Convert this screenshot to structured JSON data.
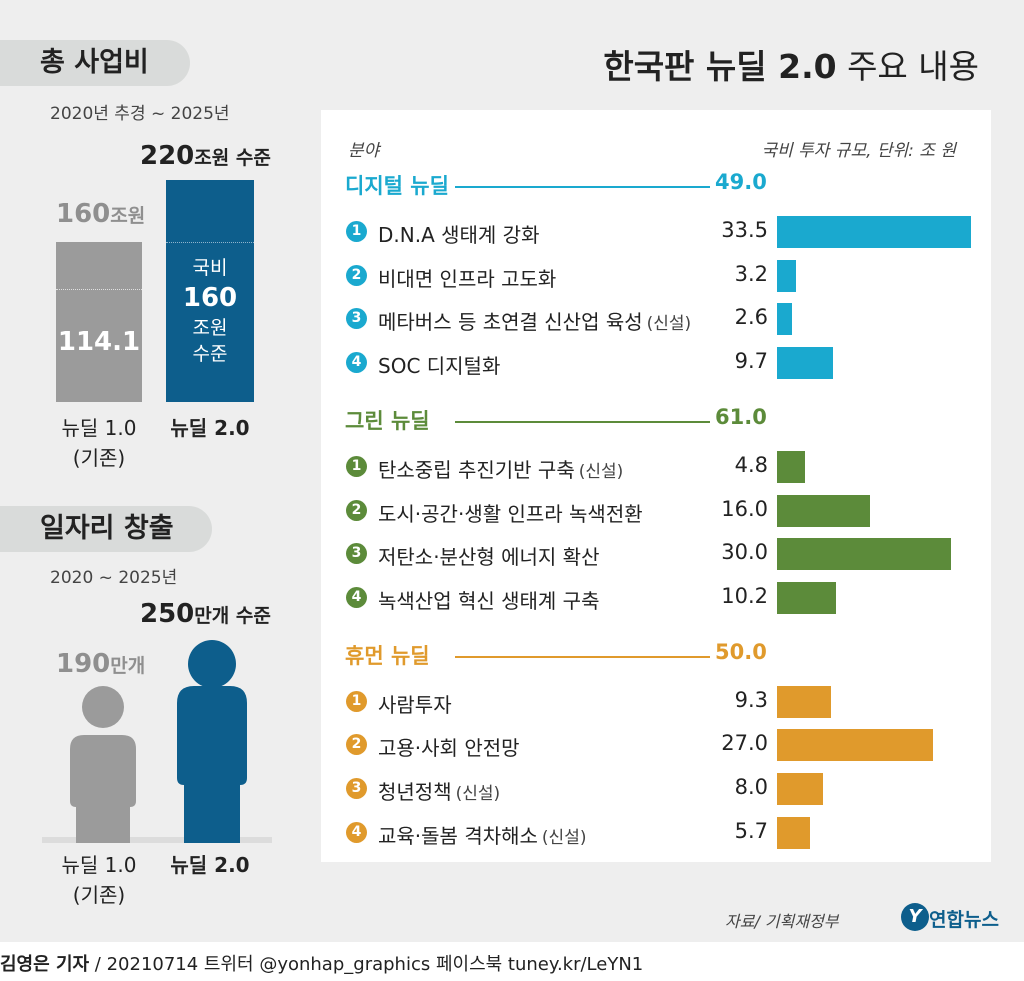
{
  "title": {
    "bold": "한국판 뉴딜 2.0",
    "rest": " 주요 내용"
  },
  "budget": {
    "heading": "총 사업비",
    "period": "2020년 추경 ~ 2025년",
    "old": {
      "total_num": "160",
      "total_unit": "조원",
      "inner": "114.1",
      "label_line1": "뉴딜 1.0",
      "label_line2": "(기존)"
    },
    "new": {
      "total_num": "220",
      "total_unit": "조원 수준",
      "inner_line1": "국비",
      "inner_line2": "160",
      "inner_line3": "조원",
      "inner_line4": "수준",
      "label": "뉴딜 2.0"
    }
  },
  "jobs": {
    "heading": "일자리 창출",
    "period": "2020 ~ 2025년",
    "old": {
      "num": "190",
      "unit": "만개",
      "label_line1": "뉴딜 1.0",
      "label_line2": "(기존)"
    },
    "new": {
      "num": "250",
      "unit": "만개 수준",
      "label": "뉴딜 2.0"
    }
  },
  "table_header": {
    "left": "분야",
    "right": "국비 투자 규모, 단위: 조 원"
  },
  "source": "자료/ 기획재정부",
  "logo": {
    "mark": "Y",
    "text": "연합뉴스"
  },
  "footer": {
    "author": "김영은 기자",
    "rest": " / 20210714  트위터 @yonhap_graphics  페이스북 tuney.kr/LeYN1"
  },
  "colors": {
    "digital": "#1aa9cf",
    "green": "#5c8b3a",
    "human": "#e09a2c",
    "navy": "#0d5e8c",
    "gray": "#9b9b9b"
  },
  "chart_data": [
    {
      "type": "bar",
      "title": "총 사업비",
      "categories": [
        "뉴딜 1.0 (기존)",
        "뉴딜 2.0"
      ],
      "series": [
        {
          "name": "국비",
          "values": [
            114.1,
            160
          ]
        },
        {
          "name": "총 사업비",
          "values": [
            160,
            220
          ]
        }
      ],
      "ylabel": "조원"
    },
    {
      "type": "bar",
      "title": "일자리 창출",
      "categories": [
        "뉴딜 1.0 (기존)",
        "뉴딜 2.0"
      ],
      "values": [
        190,
        250
      ],
      "ylabel": "만개"
    },
    {
      "type": "bar",
      "title": "한국판 뉴딜 2.0 주요 내용",
      "xlabel": "국비 투자 규모, 단위: 조 원",
      "xlim": [
        0,
        33.5
      ],
      "groups": [
        {
          "name": "디지털 뉴딜",
          "total": "49.0",
          "color": "#1aa9cf",
          "items": [
            {
              "no": "1",
              "label": "D.N.A 생태계 강화",
              "note": "",
              "value": 33.5,
              "value_text": "33.5"
            },
            {
              "no": "2",
              "label": "비대면 인프라 고도화",
              "note": "",
              "value": 3.2,
              "value_text": "3.2"
            },
            {
              "no": "3",
              "label": "메타버스 등 초연결 신산업 육성",
              "note": "(신설)",
              "value": 2.6,
              "value_text": "2.6"
            },
            {
              "no": "4",
              "label": "SOC 디지털화",
              "note": "",
              "value": 9.7,
              "value_text": "9.7"
            }
          ]
        },
        {
          "name": "그린 뉴딜",
          "total": "61.0",
          "color": "#5c8b3a",
          "items": [
            {
              "no": "1",
              "label": "탄소중립 추진기반 구축",
              "note": "(신설)",
              "value": 4.8,
              "value_text": "4.8"
            },
            {
              "no": "2",
              "label": "도시·공간·생활 인프라 녹색전환",
              "note": "",
              "value": 16.0,
              "value_text": "16.0"
            },
            {
              "no": "3",
              "label": "저탄소·분산형 에너지 확산",
              "note": "",
              "value": 30.0,
              "value_text": "30.0"
            },
            {
              "no": "4",
              "label": "녹색산업 혁신 생태계 구축",
              "note": "",
              "value": 10.2,
              "value_text": "10.2"
            }
          ]
        },
        {
          "name": "휴먼 뉴딜",
          "total": "50.0",
          "color": "#e09a2c",
          "items": [
            {
              "no": "1",
              "label": "사람투자",
              "note": "",
              "value": 9.3,
              "value_text": "9.3"
            },
            {
              "no": "2",
              "label": "고용·사회 안전망",
              "note": "",
              "value": 27.0,
              "value_text": "27.0"
            },
            {
              "no": "3",
              "label": "청년정책",
              "note": "(신설)",
              "value": 8.0,
              "value_text": "8.0"
            },
            {
              "no": "4",
              "label": "교육·돌봄 격차해소",
              "note": "(신설)",
              "value": 5.7,
              "value_text": "5.7"
            }
          ]
        }
      ]
    }
  ]
}
